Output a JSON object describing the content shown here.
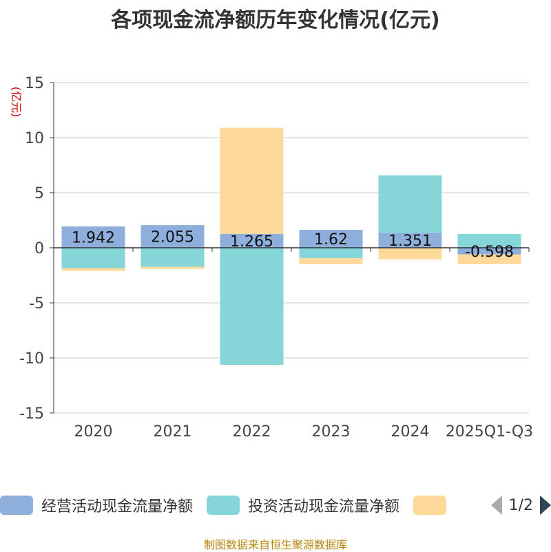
{
  "chart_data": {
    "type": "bar",
    "stacked": true,
    "title": "各项现金流净额历年变化情况(亿元)",
    "ylabel": "(亿元)",
    "xlabel": "",
    "ylim": [
      -15,
      15
    ],
    "yticks": [
      15,
      10,
      5,
      0,
      -5,
      -10,
      -15
    ],
    "categories": [
      "2020",
      "2021",
      "2022",
      "2023",
      "2024",
      "2025Q1-Q3"
    ],
    "series": [
      {
        "name": "经营活动现金流量净额",
        "color": "#8eaedc",
        "values": [
          1.942,
          2.055,
          1.265,
          1.62,
          1.351,
          -0.598
        ],
        "labels": [
          "1.942",
          "2.055",
          "1.265",
          "1.62",
          "1.351",
          "-0.598"
        ]
      },
      {
        "name": "投资活动现金流量净额",
        "color": "#86d5d8",
        "values": [
          -1.85,
          -1.72,
          -10.63,
          -0.95,
          5.23,
          1.25
        ]
      },
      {
        "name": "",
        "color": "#ffd999",
        "values": [
          -0.25,
          -0.2,
          9.63,
          -0.55,
          -1.05,
          -0.9
        ]
      }
    ],
    "legend_page": "1/2",
    "source": "制图数据来自恒生聚源数据库"
  }
}
